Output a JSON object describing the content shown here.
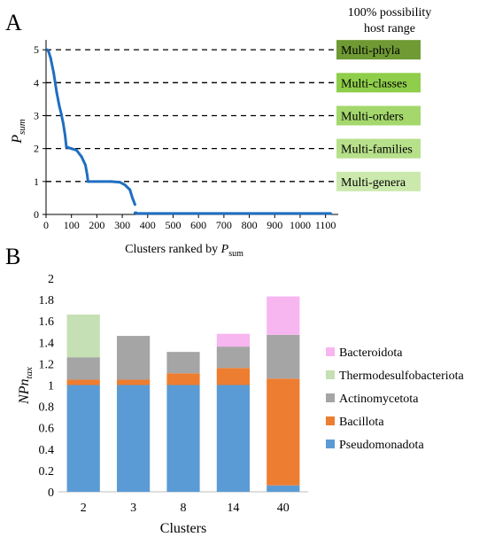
{
  "panels": {
    "a_label": "A",
    "b_label": "B"
  },
  "chart_data": [
    {
      "type": "scatter",
      "panel": "A",
      "title": "",
      "xlabel_main": "Clusters ranked by ",
      "xlabel_var": "P",
      "xlabel_sub": "sum",
      "ylabel_var": "P",
      "ylabel_sub": "sum",
      "xlim": [
        0,
        1150
      ],
      "ylim": [
        0,
        5.3
      ],
      "xticks": [
        0,
        100,
        200,
        300,
        400,
        500,
        600,
        700,
        800,
        900,
        1000,
        1100
      ],
      "yticks": [
        0,
        1,
        2,
        3,
        4,
        5
      ],
      "grid": false,
      "series_color": "#1f6fc0",
      "segments": [
        {
          "from": [
            5,
            5
          ],
          "to": [
            10,
            4.95
          ]
        },
        {
          "from": [
            10,
            4.95
          ],
          "to": [
            18,
            4.75
          ]
        },
        {
          "from": [
            18,
            4.75
          ],
          "to": [
            30,
            4.3
          ]
        },
        {
          "from": [
            30,
            4.3
          ],
          "to": [
            42,
            3.7
          ]
        },
        {
          "from": [
            42,
            3.7
          ],
          "to": [
            52,
            3.3
          ]
        },
        {
          "from": [
            52,
            3.3
          ],
          "to": [
            60,
            3.05
          ]
        },
        {
          "from": [
            60,
            3.05
          ],
          "to": [
            68,
            2.75
          ]
        },
        {
          "from": [
            68,
            2.75
          ],
          "to": [
            75,
            2.4
          ]
        },
        {
          "from": [
            75,
            2.4
          ],
          "to": [
            80,
            2.05
          ]
        },
        {
          "from": [
            80,
            2.05
          ],
          "to": [
            100,
            2.0
          ]
        },
        {
          "from": [
            100,
            2.0
          ],
          "to": [
            120,
            1.95
          ]
        },
        {
          "from": [
            120,
            1.95
          ],
          "to": [
            140,
            1.75
          ]
        },
        {
          "from": [
            140,
            1.75
          ],
          "to": [
            155,
            1.5
          ]
        },
        {
          "from": [
            155,
            1.5
          ],
          "to": [
            162,
            1.2
          ]
        },
        {
          "from": [
            162,
            1.2
          ],
          "to": [
            165,
            1.0
          ]
        },
        {
          "from": [
            165,
            1.0
          ],
          "to": [
            255,
            1.0
          ]
        },
        {
          "from": [
            255,
            1.0
          ],
          "to": [
            290,
            0.98
          ]
        },
        {
          "from": [
            290,
            0.98
          ],
          "to": [
            310,
            0.9
          ]
        },
        {
          "from": [
            310,
            0.9
          ],
          "to": [
            330,
            0.75
          ]
        },
        {
          "from": [
            330,
            0.75
          ],
          "to": [
            340,
            0.5
          ]
        },
        {
          "from": [
            340,
            0.5
          ],
          "to": [
            350,
            0.3
          ]
        },
        {
          "from": [
            350,
            0.05
          ],
          "to": [
            355,
            0.05
          ]
        },
        {
          "from": [
            355,
            0.03
          ],
          "to": [
            1120,
            0.03
          ]
        }
      ],
      "threshold_lines": [
        {
          "y": 5,
          "label": "Multi-phyla",
          "color": "#6f9a34"
        },
        {
          "y": 4,
          "label": "Multi-classes",
          "color": "#8fce4a"
        },
        {
          "y": 3,
          "label": "Multi-orders",
          "color": "#a4d76c"
        },
        {
          "y": 2,
          "label": "Multi-families",
          "color": "#b7e08a"
        },
        {
          "y": 1,
          "label": "Multi-genera",
          "color": "#cbe9ad"
        }
      ],
      "annotation_line1": "100% possibility",
      "annotation_line2": "host range"
    },
    {
      "type": "bar",
      "stacked": true,
      "panel": "B",
      "title": "",
      "xlabel": "Clusters",
      "ylabel_main": "NPn",
      "ylabel_sub": "tax",
      "categories": [
        "2",
        "3",
        "8",
        "14",
        "40"
      ],
      "ylim": [
        0,
        2
      ],
      "yticks": [
        "0",
        "0.2",
        "0.4",
        "0.6",
        "0.8",
        "1",
        "1.2",
        "1.4",
        "1.6",
        "1.8",
        "2"
      ],
      "grid": false,
      "legend_position": "right",
      "series": [
        {
          "name": "Pseudomonadota",
          "color": "#5b9bd5",
          "values": [
            1.0,
            1.0,
            1.0,
            1.0,
            0.06
          ]
        },
        {
          "name": "Bacillota",
          "color": "#ed7d31",
          "values": [
            0.05,
            0.05,
            0.11,
            0.16,
            1.0
          ]
        },
        {
          "name": "Actinomycetota",
          "color": "#a5a5a5",
          "values": [
            0.21,
            0.41,
            0.2,
            0.2,
            0.41
          ]
        },
        {
          "name": "Thermodesulfobacteriota",
          "color": "#c5e0b4",
          "values": [
            0.4,
            0,
            0,
            0,
            0
          ]
        },
        {
          "name": "Bacteroidota",
          "color": "#f8b6f0",
          "values": [
            0,
            0,
            0,
            0.12,
            0.36
          ]
        }
      ],
      "legend_order": [
        "Bacteroidota",
        "Thermodesulfobacteriota",
        "Actinomycetota",
        "Bacillota",
        "Pseudomonadota"
      ]
    }
  ]
}
